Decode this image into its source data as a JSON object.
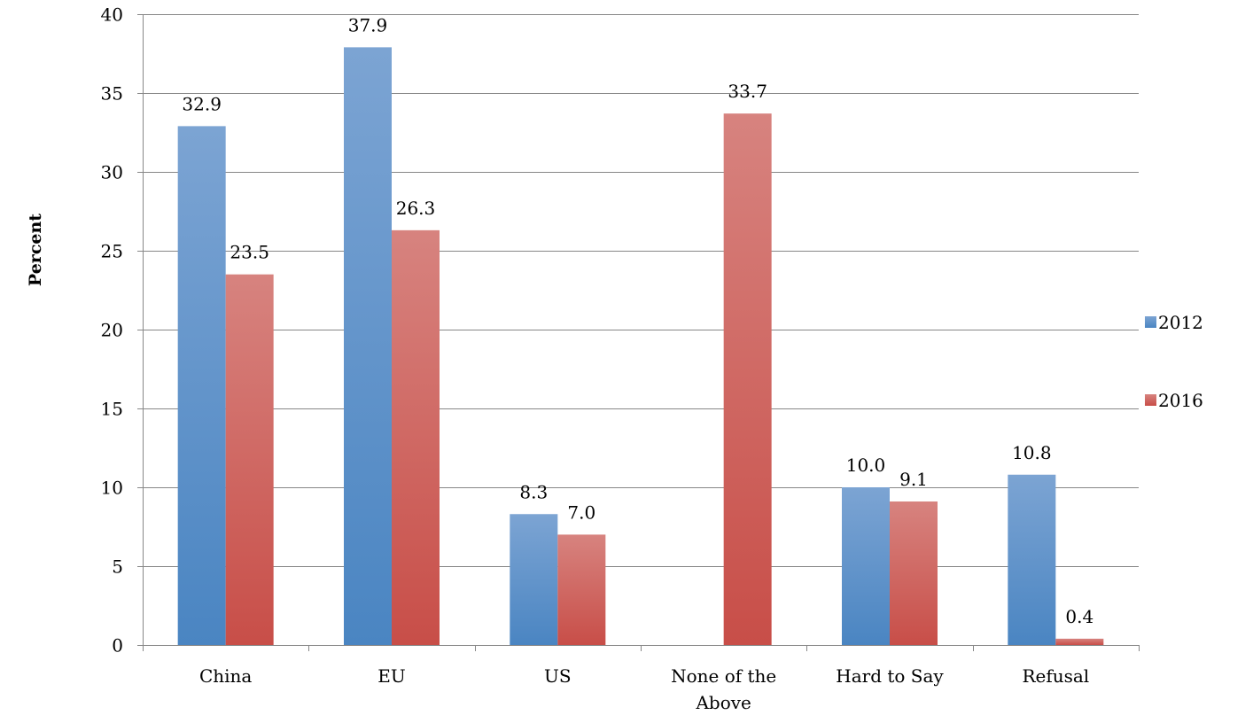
{
  "chart_data": {
    "type": "bar",
    "title": "",
    "xlabel": "",
    "ylabel": "Percent",
    "ylim": [
      0,
      40
    ],
    "ytick_step": 5,
    "grid": true,
    "legend_position": "right",
    "categories": [
      [
        "China"
      ],
      [
        "EU"
      ],
      [
        "US"
      ],
      [
        "None of the",
        "Above"
      ],
      [
        "Hard to Say"
      ],
      [
        "Refusal"
      ]
    ],
    "series": [
      {
        "name": "2012",
        "color": "#4f81bd",
        "values": [
          32.9,
          37.9,
          8.3,
          null,
          10.0,
          10.8
        ],
        "labels": [
          "32.9",
          "37.9",
          "8.3",
          "",
          "10.0",
          "10.8"
        ]
      },
      {
        "name": "2016",
        "color": "#c0504d",
        "values": [
          23.5,
          26.3,
          7.0,
          33.7,
          9.1,
          0.4
        ],
        "labels": [
          "23.5",
          "26.3",
          "7.0",
          "33.7",
          "9.1",
          "0.4"
        ]
      }
    ]
  }
}
